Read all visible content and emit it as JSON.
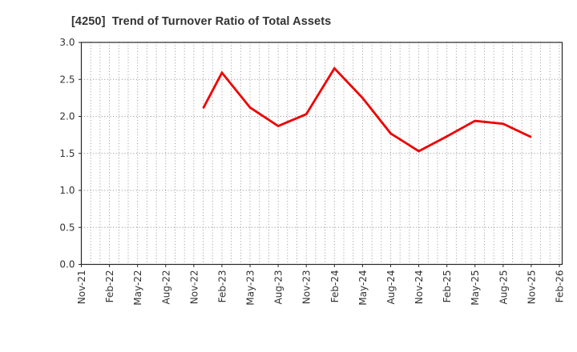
{
  "chart_data": {
    "type": "line",
    "title": "[4250]  Trend of Turnover Ratio of Total Assets",
    "xlabel": "",
    "ylabel": "",
    "ylim": [
      0.0,
      3.0
    ],
    "y_tick_labels": [
      "0.0",
      "0.5",
      "1.0",
      "1.5",
      "2.0",
      "2.5",
      "3.0"
    ],
    "y_tick_values": [
      0.0,
      0.5,
      1.0,
      1.5,
      2.0,
      2.5,
      3.0
    ],
    "x_tick_labels": [
      "Nov-21",
      "Feb-22",
      "May-22",
      "Aug-22",
      "Nov-22",
      "Feb-23",
      "May-23",
      "Aug-23",
      "Nov-23",
      "Feb-24",
      "May-24",
      "Aug-24",
      "Nov-24",
      "Feb-25",
      "May-25",
      "Aug-25",
      "Nov-25",
      "Feb-26"
    ],
    "x_tick_interval_months": 3,
    "x_axis_total_months": 51.3,
    "grid": "dotted; vertical line every month, horizontal line every 0.5",
    "legend": "none",
    "series": [
      {
        "name": "Turnover Ratio of Total Assets",
        "points": [
          {
            "label": "Dec-22",
            "month": 13,
            "value": 2.11
          },
          {
            "label": "Feb-23",
            "month": 15,
            "value": 2.59
          },
          {
            "label": "May-23",
            "month": 18,
            "value": 2.12
          },
          {
            "label": "Aug-23",
            "month": 21,
            "value": 1.87
          },
          {
            "label": "Nov-23",
            "month": 24,
            "value": 2.03
          },
          {
            "label": "Feb-24",
            "month": 27,
            "value": 2.65
          },
          {
            "label": "May-24",
            "month": 30,
            "value": 2.25
          },
          {
            "label": "Aug-24",
            "month": 33,
            "value": 1.77
          },
          {
            "label": "Nov-24",
            "month": 36,
            "value": 1.53
          },
          {
            "label": "Feb-25",
            "month": 39,
            "value": 1.73
          },
          {
            "label": "May-25",
            "month": 42,
            "value": 1.94
          },
          {
            "label": "Aug-25",
            "month": 45,
            "value": 1.9
          },
          {
            "label": "Nov-25",
            "month": 48,
            "value": 1.72
          }
        ]
      }
    ],
    "colors": {
      "line": "#ee0000",
      "grid": "#8a8a8a",
      "axis": "#262626",
      "text": "#333333",
      "background": "#ffffff"
    }
  }
}
